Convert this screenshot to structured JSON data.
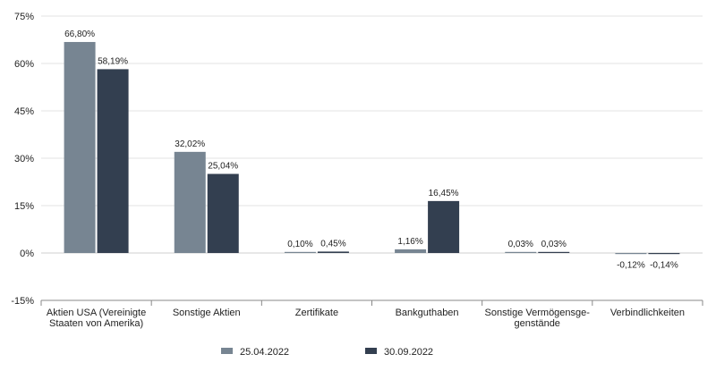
{
  "chart_data": {
    "type": "bar",
    "categories": [
      [
        "Aktien USA (Vereinigte",
        "Staaten von Amerika)"
      ],
      [
        "Sonstige Aktien"
      ],
      [
        "Zertifikate"
      ],
      [
        "Bankguthaben"
      ],
      [
        "Sonstige Vermögensge-",
        "genstände"
      ],
      [
        "Verbindlichkeiten"
      ]
    ],
    "series": [
      {
        "name": "25.04.2022",
        "color": "#778592",
        "values": [
          66.8,
          32.02,
          0.1,
          1.16,
          0.03,
          -0.12
        ],
        "labels": [
          "66,80%",
          "32,02%",
          "0,10%",
          "1,16%",
          "0,03%",
          "-0,12%"
        ]
      },
      {
        "name": "30.09.2022",
        "color": "#333f50",
        "values": [
          58.19,
          25.04,
          0.45,
          16.45,
          0.03,
          -0.14
        ],
        "labels": [
          "58,19%",
          "25,04%",
          "0,45%",
          "16,45%",
          "0,03%",
          "-0,14%"
        ]
      }
    ],
    "yticks": [
      75,
      60,
      45,
      30,
      15,
      0,
      -15
    ],
    "ytick_labels": [
      "75%",
      "60%",
      "45%",
      "30%",
      "15%",
      "0%",
      "-15%"
    ],
    "ylim": [
      -15,
      75
    ],
    "grid": true,
    "legend_position": "bottom-center",
    "title": "",
    "xlabel": "",
    "ylabel": ""
  }
}
